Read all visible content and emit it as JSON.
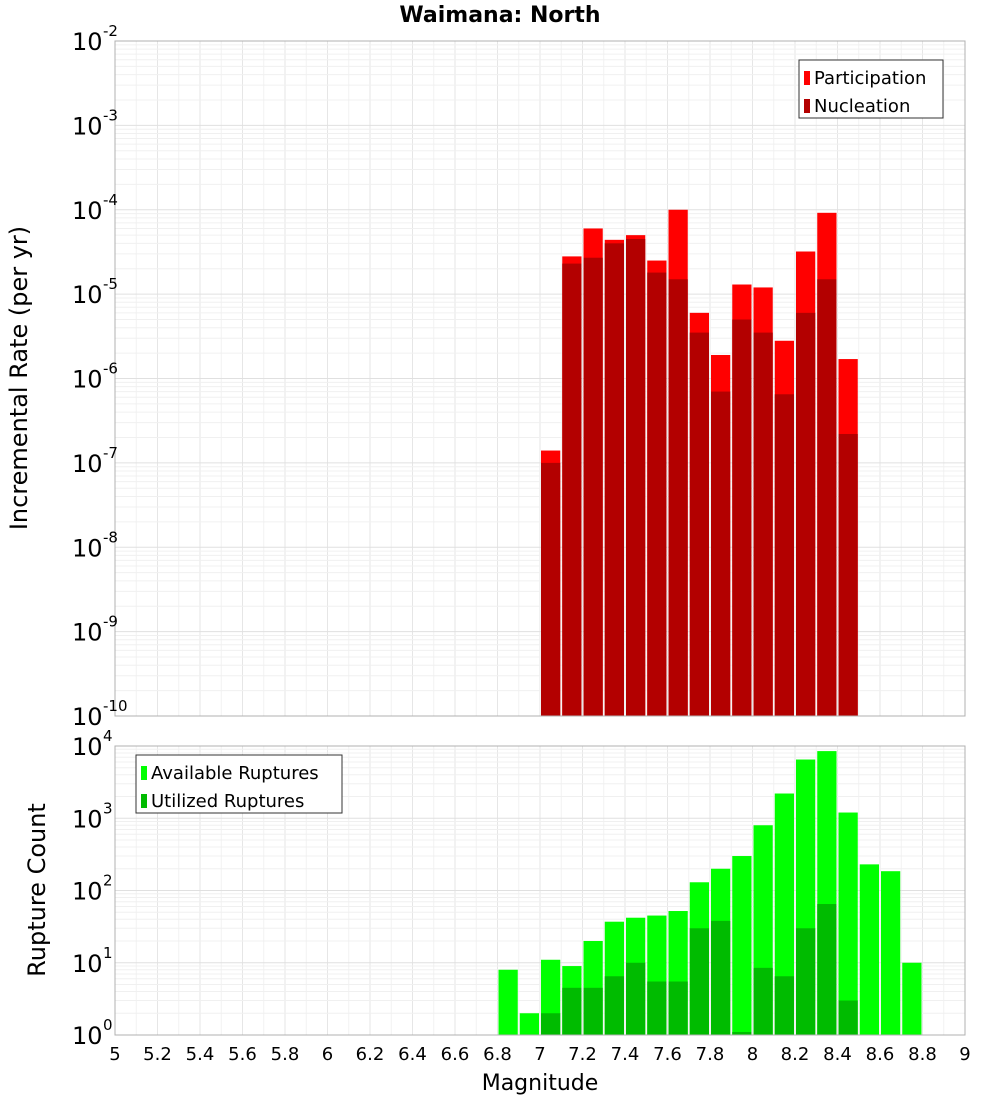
{
  "chart_data": [
    {
      "type": "bar",
      "title": "Waimana: North",
      "xlabel": "",
      "ylabel": "Incremental Rate (per yr)",
      "y_scale": "log",
      "ylim": [
        1e-10,
        0.01
      ],
      "xlim": [
        5,
        9
      ],
      "grid": true,
      "legend_position": "top-right",
      "series": [
        {
          "name": "Participation",
          "color": "#ff0000",
          "x": [
            7.05,
            7.15,
            7.25,
            7.35,
            7.45,
            7.55,
            7.65,
            7.75,
            7.85,
            7.95,
            8.05,
            8.15,
            8.25,
            8.35,
            8.45
          ],
          "values": [
            1.4e-07,
            2.8e-05,
            6e-05,
            4.4e-05,
            5e-05,
            2.5e-05,
            0.0001,
            6e-06,
            1.9e-06,
            1.3e-05,
            1.2e-05,
            2.8e-06,
            3.2e-05,
            9.2e-05,
            1.7e-06
          ]
        },
        {
          "name": "Nucleation",
          "color": "#b30000",
          "x": [
            7.05,
            7.15,
            7.25,
            7.35,
            7.45,
            7.55,
            7.65,
            7.75,
            7.85,
            7.95,
            8.05,
            8.15,
            8.25,
            8.35,
            8.45
          ],
          "values": [
            1e-07,
            2.3e-05,
            2.7e-05,
            4e-05,
            4.5e-05,
            1.8e-05,
            1.5e-05,
            3.5e-06,
            7e-07,
            5e-06,
            3.5e-06,
            6.5e-07,
            6e-06,
            1.5e-05,
            2.2e-07
          ]
        }
      ]
    },
    {
      "type": "bar",
      "title": "",
      "xlabel": "Magnitude",
      "ylabel": "Rupture Count",
      "y_scale": "log",
      "ylim": [
        1,
        10000
      ],
      "xlim": [
        5,
        9
      ],
      "grid": true,
      "legend_position": "top-left",
      "x_ticks": [
        "5",
        "5.2",
        "5.4",
        "5.6",
        "5.8",
        "6",
        "6.2",
        "6.4",
        "6.6",
        "6.8",
        "7",
        "7.2",
        "7.4",
        "7.6",
        "7.8",
        "8",
        "8.2",
        "8.4",
        "8.6",
        "8.8",
        "9"
      ],
      "series": [
        {
          "name": "Available Ruptures",
          "color": "#00ff00",
          "x": [
            6.85,
            6.95,
            7.05,
            7.15,
            7.25,
            7.35,
            7.45,
            7.55,
            7.65,
            7.75,
            7.85,
            7.95,
            8.05,
            8.15,
            8.25,
            8.35,
            8.45,
            8.55,
            8.65,
            8.75
          ],
          "values": [
            8,
            2,
            11,
            9,
            20,
            37,
            42,
            45,
            52,
            130,
            200,
            300,
            800,
            2200,
            6500,
            8500,
            1200,
            230,
            185,
            10
          ]
        },
        {
          "name": "Utilized Ruptures",
          "color": "#00bb00",
          "x": [
            6.95,
            7.05,
            7.15,
            7.25,
            7.35,
            7.45,
            7.55,
            7.65,
            7.75,
            7.85,
            7.95,
            8.05,
            8.15,
            8.25,
            8.35,
            8.45
          ],
          "values": [
            1,
            2,
            4.5,
            4.5,
            6.5,
            10,
            5.5,
            5.5,
            30,
            38,
            1.1,
            8.5,
            6.5,
            30,
            65,
            3
          ]
        }
      ]
    }
  ]
}
